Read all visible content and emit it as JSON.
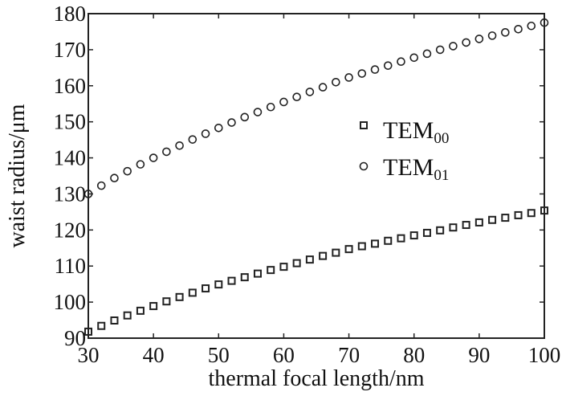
{
  "chart_data": {
    "type": "scatter",
    "title": "",
    "xlabel": "thermal focal length/nm",
    "ylabel": "waist radius/μm",
    "xlim": [
      30,
      100
    ],
    "ylim": [
      90,
      180
    ],
    "xticks": [
      30,
      40,
      50,
      60,
      70,
      80,
      90,
      100
    ],
    "yticks": [
      90,
      100,
      110,
      120,
      130,
      140,
      150,
      160,
      170,
      180
    ],
    "grid": false,
    "legend_position": "center-right",
    "x": [
      30,
      32,
      34,
      36,
      38,
      40,
      42,
      44,
      46,
      48,
      50,
      52,
      54,
      56,
      58,
      60,
      62,
      64,
      66,
      68,
      70,
      72,
      74,
      76,
      78,
      80,
      82,
      84,
      86,
      88,
      90,
      92,
      94,
      96,
      98,
      100
    ],
    "series": [
      {
        "name": "TEM00",
        "label_main": "TEM",
        "label_sub": "00",
        "marker": "square",
        "values": [
          91.8,
          93.4,
          94.9,
          96.3,
          97.6,
          98.9,
          100.2,
          101.4,
          102.6,
          103.8,
          104.9,
          105.9,
          106.9,
          107.9,
          108.9,
          109.8,
          110.8,
          111.8,
          112.8,
          113.7,
          114.7,
          115.5,
          116.2,
          117.0,
          117.7,
          118.5,
          119.2,
          119.9,
          120.7,
          121.4,
          122.1,
          122.8,
          123.4,
          124.1,
          124.7,
          125.4
        ]
      },
      {
        "name": "TEM01",
        "label_main": "TEM",
        "label_sub": "01",
        "marker": "circle",
        "values": [
          130.0,
          132.3,
          134.4,
          136.3,
          138.2,
          140.0,
          141.7,
          143.4,
          145.1,
          146.7,
          148.3,
          149.8,
          151.3,
          152.7,
          154.1,
          155.5,
          156.9,
          158.3,
          159.6,
          161.0,
          162.3,
          163.4,
          164.5,
          165.6,
          166.7,
          167.8,
          168.9,
          170.0,
          171.0,
          172.0,
          173.0,
          173.9,
          174.8,
          175.7,
          176.6,
          177.5
        ]
      }
    ]
  }
}
